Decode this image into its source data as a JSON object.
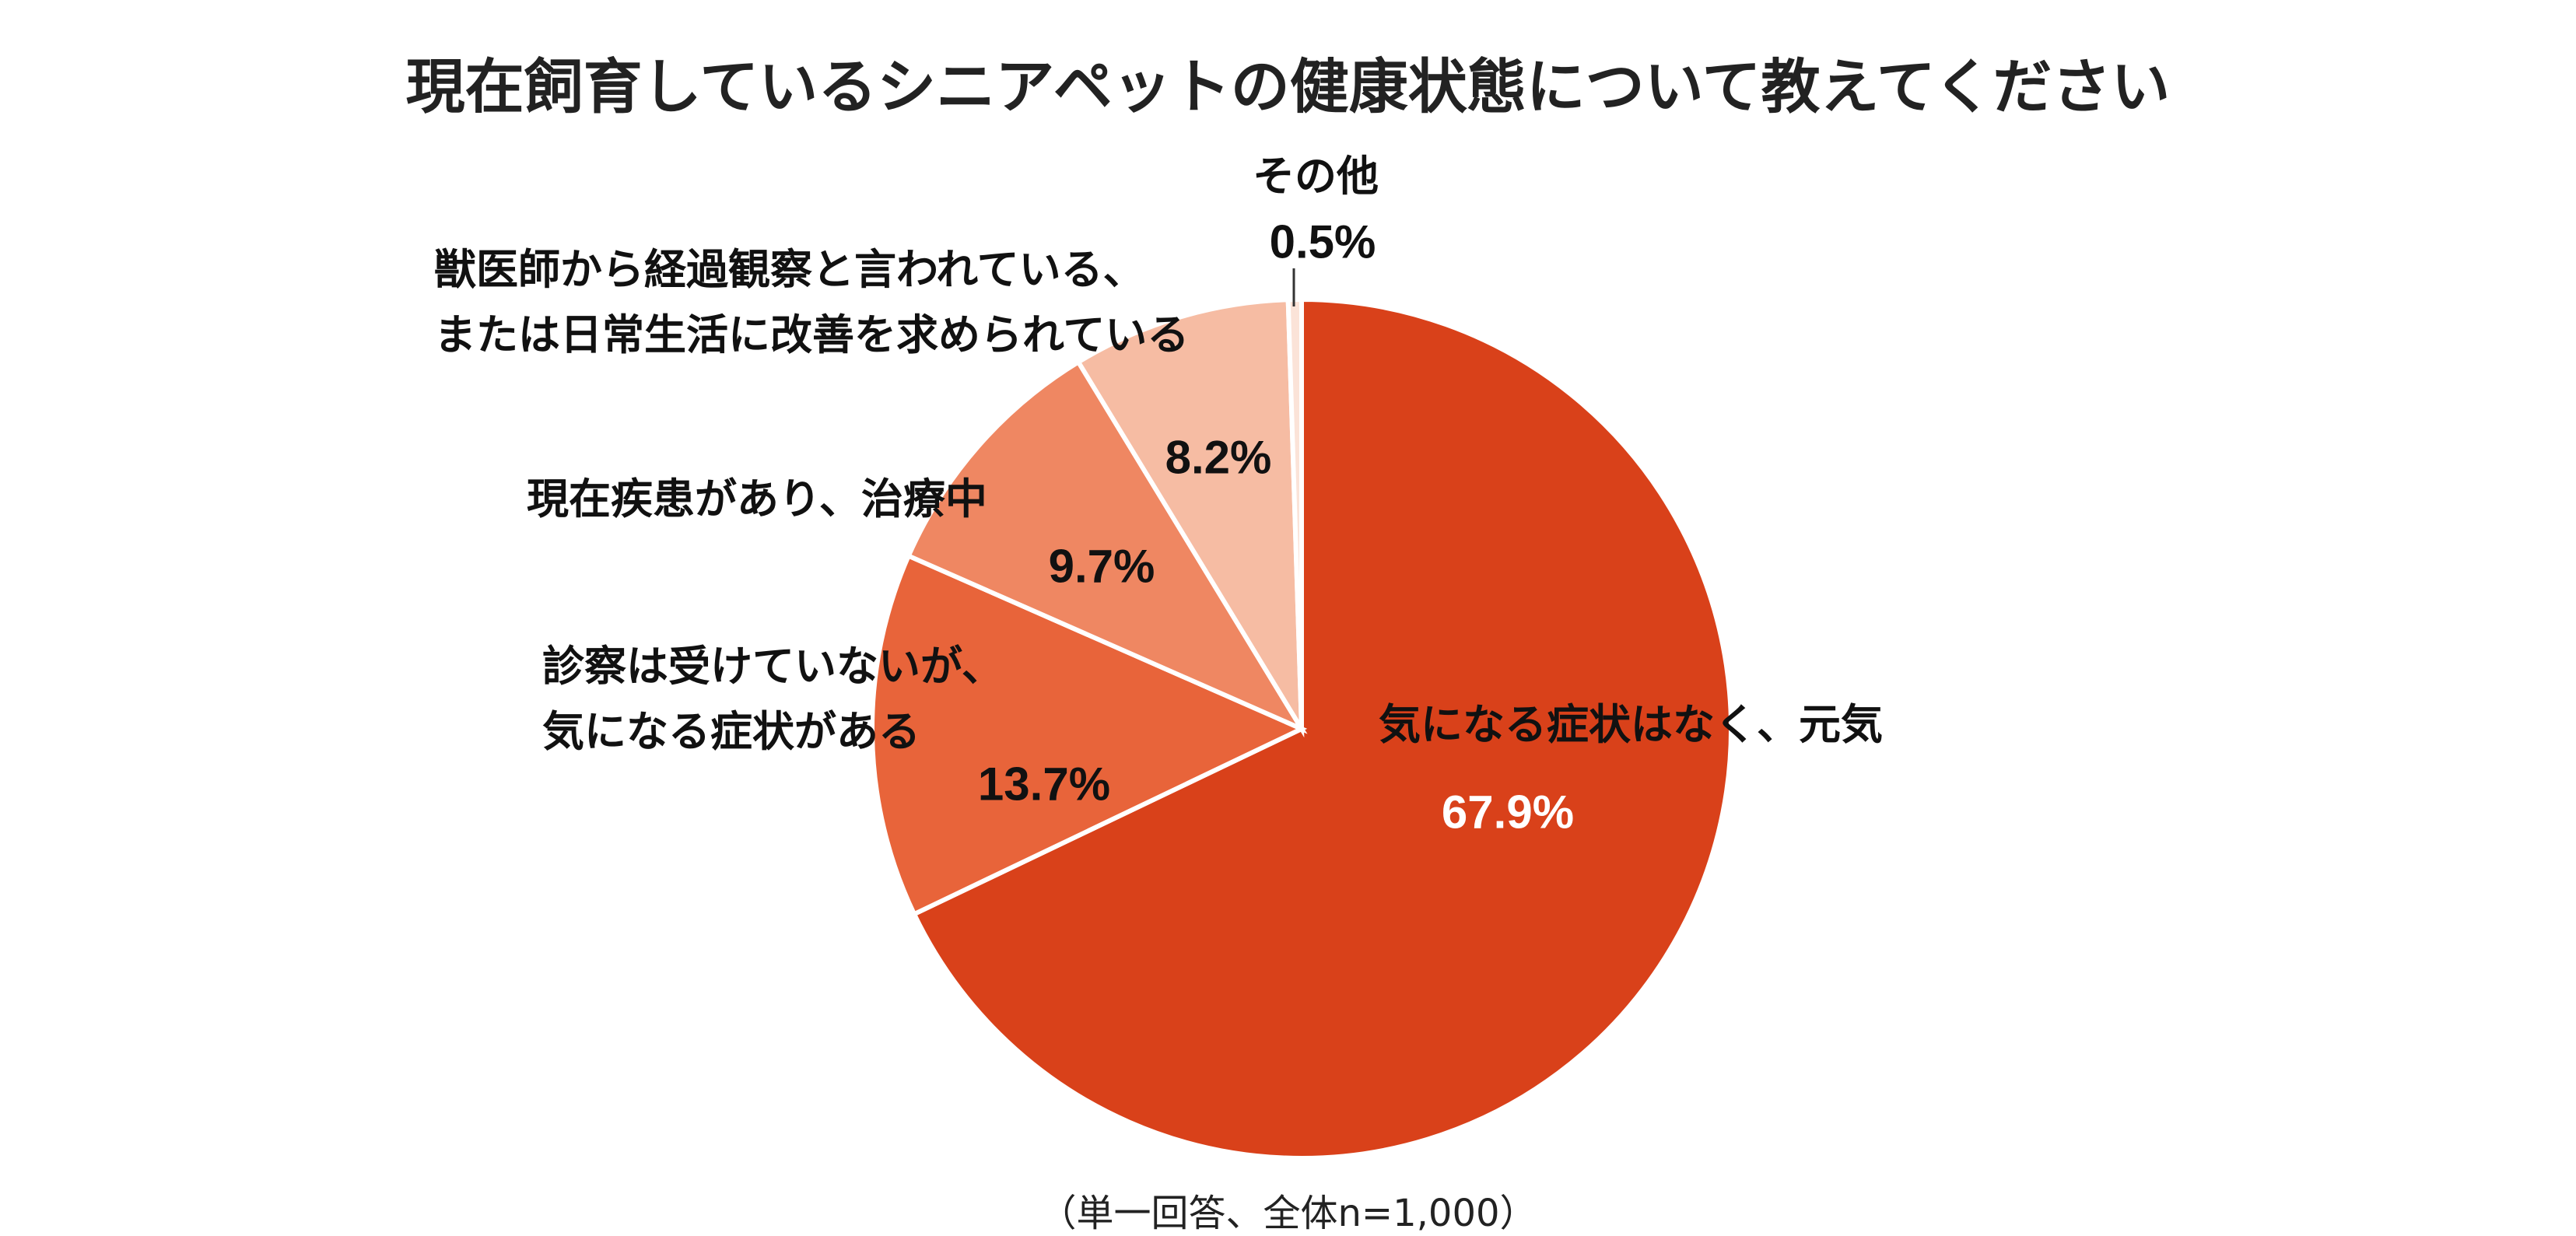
{
  "chart_data": {
    "type": "pie",
    "title": "現在飼育しているシニアペットの健康状態について教えてください",
    "categories": [
      "気になる症状はなく、元気",
      "診察は受けていないが、\n気になる症状がある",
      "現在疾患があり、治療中",
      "獣医師から経過観察と言われている、\nまたは日常生活に改善を求められている",
      "その他"
    ],
    "values": [
      67.9,
      13.7,
      9.7,
      8.2,
      0.5
    ],
    "value_labels": [
      "67.9%",
      "13.7%",
      "9.7%",
      "8.2%",
      "0.5%"
    ],
    "colors": [
      "#d9411a",
      "#e8643a",
      "#ef8762",
      "#f6bca3",
      "#fbe3d8"
    ],
    "note": "（単一回答、全体n=1,000）"
  }
}
